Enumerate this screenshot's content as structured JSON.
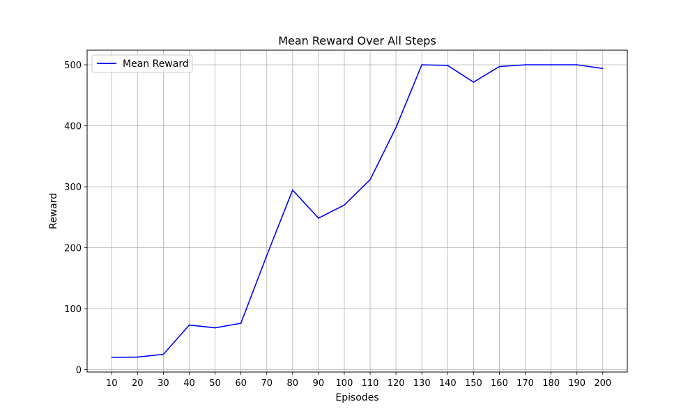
{
  "chart_data": {
    "type": "line",
    "title": "Mean Reward Over All Steps",
    "xlabel": "Episodes",
    "ylabel": "Reward",
    "x": [
      10,
      20,
      30,
      40,
      50,
      60,
      70,
      80,
      90,
      100,
      110,
      120,
      130,
      140,
      150,
      160,
      170,
      180,
      190,
      200
    ],
    "series": [
      {
        "name": "Mean Reward",
        "color": "#0000ff",
        "values": [
          20,
          20.5,
          25,
          73,
          68.5,
          76,
          187,
          294.5,
          248.5,
          270,
          311.5,
          397,
          500,
          499,
          471.5,
          497,
          500,
          500,
          500,
          494
        ]
      }
    ],
    "xlim": [
      0.5,
      209.5
    ],
    "ylim": [
      -4,
      524
    ],
    "xticks": [
      10,
      20,
      30,
      40,
      50,
      60,
      70,
      80,
      90,
      100,
      110,
      120,
      130,
      140,
      150,
      160,
      170,
      180,
      190,
      200
    ],
    "yticks": [
      0,
      100,
      200,
      300,
      400,
      500
    ],
    "grid": true,
    "legend_position": "top-left"
  }
}
